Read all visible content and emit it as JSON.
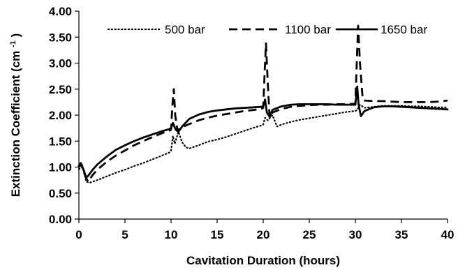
{
  "chart_data": {
    "type": "line",
    "title": "",
    "xlabel": "Cavitation Duration (hours)",
    "ylabel": {
      "main": "Extinction Coefficient (cm",
      "sup": "-1",
      "tail": ")"
    },
    "xlim": [
      0,
      40
    ],
    "ylim": [
      0,
      4
    ],
    "x_ticks": [
      0,
      5,
      10,
      15,
      20,
      25,
      30,
      35,
      40
    ],
    "y_ticks": [
      0,
      0.5,
      1,
      1.5,
      2,
      2.5,
      3,
      3.5,
      4
    ],
    "x_tick_labels": [
      "0",
      "5",
      "10",
      "15",
      "20",
      "25",
      "30",
      "35",
      "40"
    ],
    "y_tick_labels": [
      "0.00",
      "0.50",
      "1.00",
      "1.50",
      "2.00",
      "2.50",
      "3.00",
      "3.50",
      "4.00"
    ],
    "grid": false,
    "legend": {
      "placement": "top",
      "entries": [
        "500 bar",
        "1100 bar",
        "1650 bar"
      ]
    },
    "series": [
      {
        "name": "500 bar",
        "style": "dotted",
        "color": "#000000",
        "points": [
          [
            0,
            0.96
          ],
          [
            0.4,
            1.0
          ],
          [
            0.8,
            0.72
          ],
          [
            1.2,
            0.7
          ],
          [
            2,
            0.75
          ],
          [
            3,
            0.82
          ],
          [
            4,
            0.89
          ],
          [
            5,
            0.95
          ],
          [
            6,
            1.02
          ],
          [
            7,
            1.08
          ],
          [
            8,
            1.15
          ],
          [
            9,
            1.22
          ],
          [
            9.8,
            1.28
          ],
          [
            10,
            1.32
          ],
          [
            10.2,
            1.6
          ],
          [
            10.4,
            1.45
          ],
          [
            10.8,
            1.68
          ],
          [
            11.2,
            1.48
          ],
          [
            11.6,
            1.38
          ],
          [
            12,
            1.36
          ],
          [
            13,
            1.42
          ],
          [
            14,
            1.49
          ],
          [
            15,
            1.53
          ],
          [
            16,
            1.58
          ],
          [
            17,
            1.64
          ],
          [
            18,
            1.7
          ],
          [
            19,
            1.76
          ],
          [
            19.8,
            1.8
          ],
          [
            20,
            1.82
          ],
          [
            20.2,
            1.95
          ],
          [
            20.5,
            1.9
          ],
          [
            21,
            2.0
          ],
          [
            21.5,
            1.78
          ],
          [
            22,
            1.82
          ],
          [
            23,
            1.87
          ],
          [
            24,
            1.91
          ],
          [
            25,
            1.94
          ],
          [
            26,
            1.97
          ],
          [
            27,
            2.0
          ],
          [
            28,
            2.03
          ],
          [
            29,
            2.06
          ],
          [
            30,
            2.08
          ],
          [
            30.2,
            2.1
          ],
          [
            30.5,
            2.2
          ],
          [
            31,
            2.14
          ],
          [
            32,
            2.16
          ],
          [
            33,
            2.18
          ],
          [
            34,
            2.18
          ],
          [
            35,
            2.18
          ],
          [
            36,
            2.17
          ],
          [
            37,
            2.17
          ],
          [
            38,
            2.16
          ],
          [
            39,
            2.15
          ],
          [
            40,
            2.15
          ]
        ]
      },
      {
        "name": "1100 bar",
        "style": "dashed",
        "color": "#000000",
        "points": [
          [
            0,
            1.0
          ],
          [
            0.3,
            1.05
          ],
          [
            0.7,
            0.82
          ],
          [
            1,
            0.72
          ],
          [
            1.5,
            0.85
          ],
          [
            2,
            0.95
          ],
          [
            3,
            1.1
          ],
          [
            4,
            1.22
          ],
          [
            5,
            1.32
          ],
          [
            6,
            1.42
          ],
          [
            7,
            1.5
          ],
          [
            8,
            1.58
          ],
          [
            9,
            1.65
          ],
          [
            9.8,
            1.7
          ],
          [
            10,
            1.72
          ],
          [
            10.15,
            2.2
          ],
          [
            10.3,
            2.5
          ],
          [
            10.45,
            2.0
          ],
          [
            10.7,
            1.7
          ],
          [
            11,
            1.75
          ],
          [
            12,
            1.83
          ],
          [
            13,
            1.9
          ],
          [
            14,
            1.95
          ],
          [
            15,
            1.99
          ],
          [
            16,
            2.02
          ],
          [
            17,
            2.05
          ],
          [
            18,
            2.08
          ],
          [
            19,
            2.1
          ],
          [
            19.8,
            2.12
          ],
          [
            20,
            2.14
          ],
          [
            20.15,
            2.8
          ],
          [
            20.3,
            3.38
          ],
          [
            20.5,
            2.6
          ],
          [
            20.7,
            1.95
          ],
          [
            21,
            2.05
          ],
          [
            22,
            2.12
          ],
          [
            23,
            2.16
          ],
          [
            24,
            2.18
          ],
          [
            25,
            2.19
          ],
          [
            26,
            2.2
          ],
          [
            27,
            2.2
          ],
          [
            28,
            2.21
          ],
          [
            29,
            2.21
          ],
          [
            30,
            2.22
          ],
          [
            30.15,
            3.0
          ],
          [
            30.3,
            3.72
          ],
          [
            30.5,
            3.0
          ],
          [
            30.8,
            2.3
          ],
          [
            31,
            2.28
          ],
          [
            32,
            2.27
          ],
          [
            33,
            2.27
          ],
          [
            34,
            2.26
          ],
          [
            35,
            2.25
          ],
          [
            36,
            2.25
          ],
          [
            37,
            2.25
          ],
          [
            38,
            2.25
          ],
          [
            39,
            2.26
          ],
          [
            40,
            2.28
          ]
        ]
      },
      {
        "name": "1650 bar",
        "style": "solid",
        "color": "#000000",
        "points": [
          [
            0,
            1.02
          ],
          [
            0.2,
            1.08
          ],
          [
            0.5,
            0.95
          ],
          [
            0.8,
            0.8
          ],
          [
            1,
            0.83
          ],
          [
            1.5,
            0.95
          ],
          [
            2,
            1.05
          ],
          [
            3,
            1.2
          ],
          [
            4,
            1.33
          ],
          [
            5,
            1.42
          ],
          [
            6,
            1.5
          ],
          [
            7,
            1.57
          ],
          [
            8,
            1.63
          ],
          [
            9,
            1.69
          ],
          [
            9.8,
            1.73
          ],
          [
            10,
            1.75
          ],
          [
            10.2,
            1.85
          ],
          [
            10.5,
            1.72
          ],
          [
            10.8,
            1.68
          ],
          [
            11.2,
            1.78
          ],
          [
            12,
            1.93
          ],
          [
            13,
            2.01
          ],
          [
            14,
            2.06
          ],
          [
            15,
            2.09
          ],
          [
            16,
            2.11
          ],
          [
            17,
            2.13
          ],
          [
            18,
            2.14
          ],
          [
            19,
            2.15
          ],
          [
            19.8,
            2.16
          ],
          [
            20,
            2.17
          ],
          [
            20.2,
            2.3
          ],
          [
            20.4,
            2.05
          ],
          [
            20.7,
            1.97
          ],
          [
            21,
            2.1
          ],
          [
            22,
            2.17
          ],
          [
            23,
            2.2
          ],
          [
            24,
            2.21
          ],
          [
            25,
            2.21
          ],
          [
            26,
            2.21
          ],
          [
            27,
            2.21
          ],
          [
            28,
            2.2
          ],
          [
            29,
            2.2
          ],
          [
            30,
            2.2
          ],
          [
            30.2,
            2.55
          ],
          [
            30.35,
            2.2
          ],
          [
            30.6,
            1.98
          ],
          [
            31,
            2.08
          ],
          [
            32,
            2.15
          ],
          [
            33,
            2.17
          ],
          [
            34,
            2.17
          ],
          [
            35,
            2.16
          ],
          [
            36,
            2.15
          ],
          [
            37,
            2.14
          ],
          [
            38,
            2.13
          ],
          [
            39,
            2.12
          ],
          [
            40,
            2.11
          ]
        ]
      }
    ]
  }
}
